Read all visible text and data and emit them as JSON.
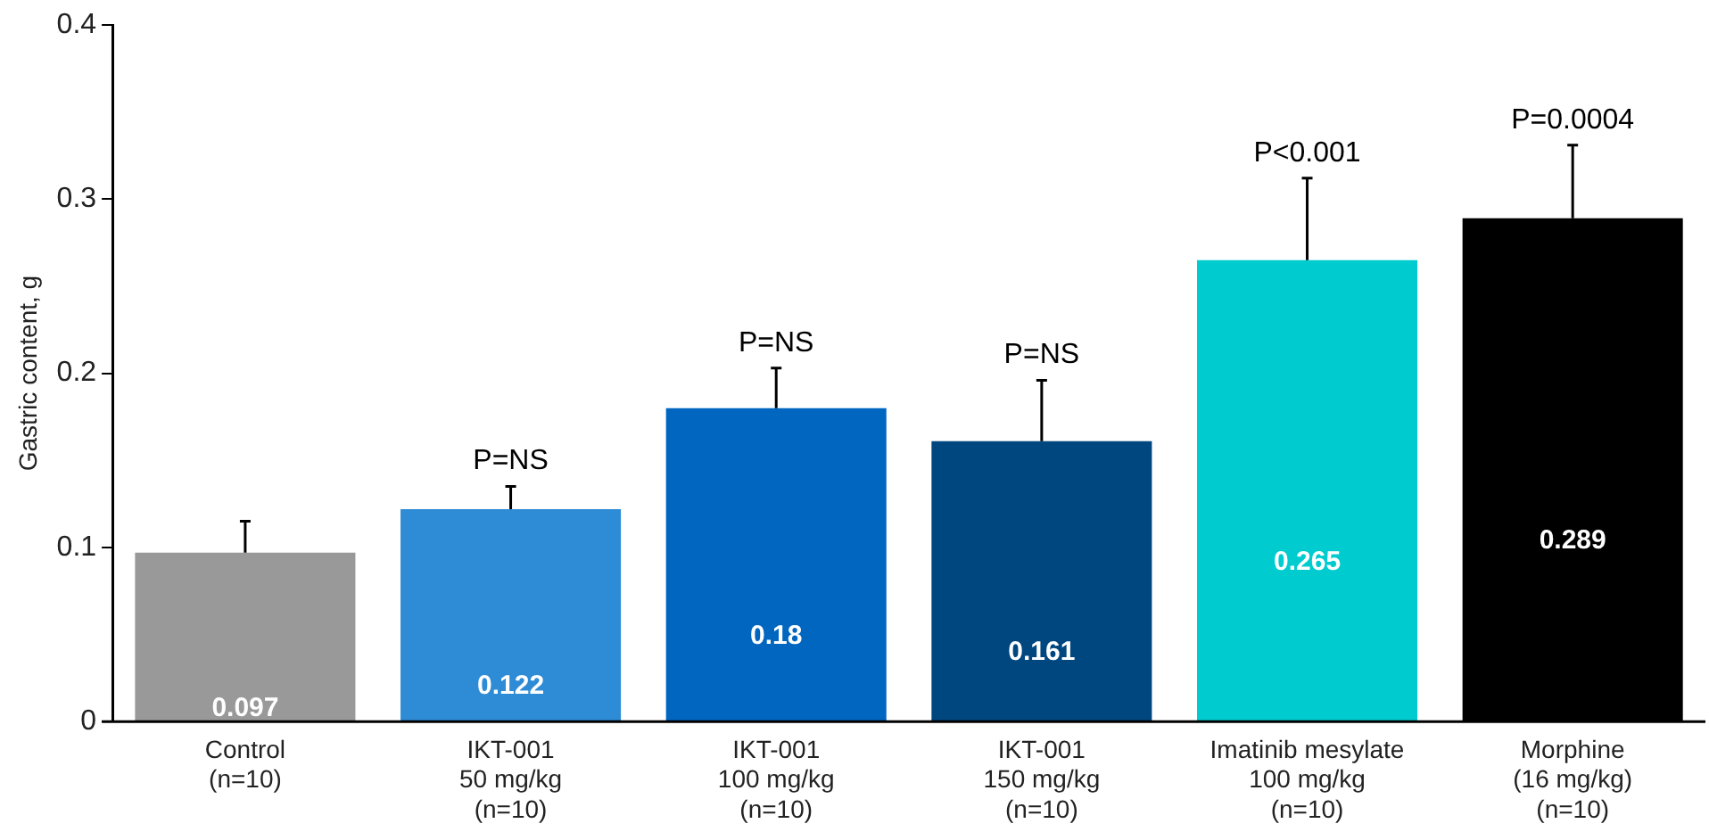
{
  "chart_data": {
    "type": "bar",
    "ylabel": "Gastric content, g",
    "categories": [
      "Control\n(n=10)",
      "IKT-001\n50 mg/kg\n(n=10)",
      "IKT-001\n100 mg/kg\n(n=10)",
      "IKT-001\n150 mg/kg\n(n=10)",
      "Imatinib mesylate\n100 mg/kg\n(n=10)",
      "Morphine\n(16 mg/kg)\n(n=10)"
    ],
    "values": [
      0.097,
      0.122,
      0.18,
      0.161,
      0.265,
      0.289
    ],
    "colors": [
      "#999999",
      "#2e8bd5",
      "#0066c0",
      "#00467f",
      "#00ccd0",
      "#000000"
    ],
    "errors": [
      [
        0.097,
        0.115
      ],
      [
        0.122,
        0.135
      ],
      [
        0.18,
        0.203
      ],
      [
        0.161,
        0.196
      ],
      [
        0.265,
        0.312
      ],
      [
        0.289,
        0.331
      ]
    ],
    "ylim": [
      0,
      0.4
    ],
    "yticks": [
      0,
      0.1,
      0.2,
      0.3,
      0.4
    ],
    "grid": false,
    "legend": false,
    "data_labels": true,
    "annotations": [
      {
        "text": "P=NS",
        "x": "IKT-001\n50 mg/kg\n(n=10)",
        "y": 0.135
      },
      {
        "text": "P=NS",
        "x": "IKT-001\n100 mg/kg\n(n=10)",
        "y": 0.203
      },
      {
        "text": "P=NS",
        "x": "IKT-001\n150 mg/kg\n(n=10)",
        "y": 0.196
      },
      {
        "text": "P<0.001",
        "x": "Imatinib mesylate\n100 mg/kg\n(n=10)",
        "y": 0.312
      },
      {
        "text": "P=0.0004",
        "x": "Morphine\n(16 mg/kg)\n(n=10)",
        "y": 0.331
      }
    ]
  }
}
